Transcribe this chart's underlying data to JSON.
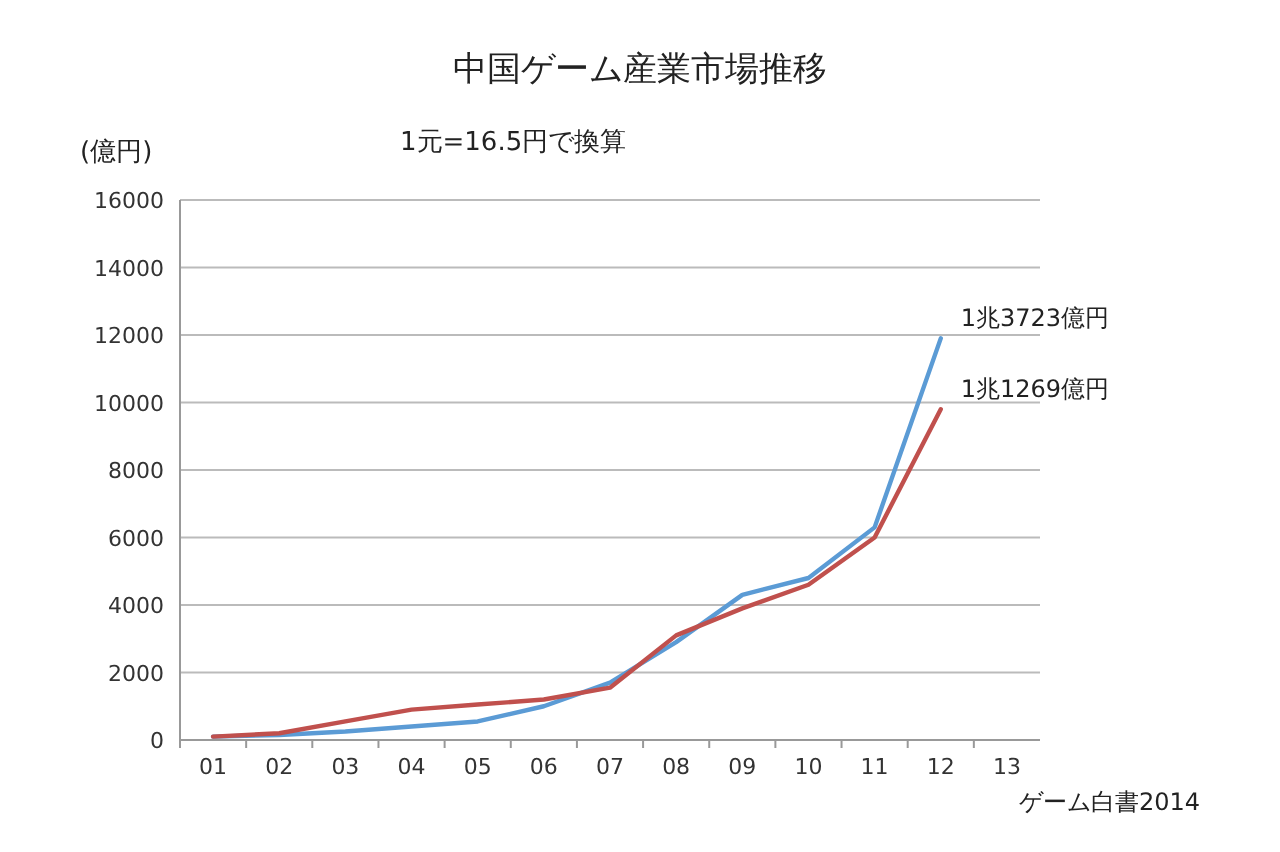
{
  "chart_data": {
    "type": "line",
    "title": "中国ゲーム産業市場推移",
    "subtitle": "1元=16.5円で換算",
    "ylabel": "(億円)",
    "categories": [
      "01",
      "02",
      "03",
      "04",
      "05",
      "06",
      "07",
      "08",
      "09",
      "10",
      "11",
      "12",
      "13"
    ],
    "series": [
      {
        "color": "#5b9bd5",
        "values": [
          100,
          150,
          250,
          400,
          550,
          1000,
          1700,
          2900,
          4300,
          4800,
          6300,
          11900,
          null
        ]
      },
      {
        "color": "#c0504d",
        "values": [
          100,
          200,
          550,
          900,
          1050,
          1200,
          1550,
          3100,
          3900,
          4600,
          6000,
          9800,
          null
        ]
      }
    ],
    "ylim": [
      0,
      16000
    ],
    "yticks": [
      0,
      2000,
      4000,
      6000,
      8000,
      10000,
      12000,
      14000,
      16000
    ],
    "grid": "y",
    "annotations": [
      {
        "text": "1兆3723億円",
        "x": "12",
        "y": 11900
      },
      {
        "text": "1兆1269億円",
        "x": "12",
        "y": 9800
      },
      "ゲーム白書2014"
    ]
  }
}
